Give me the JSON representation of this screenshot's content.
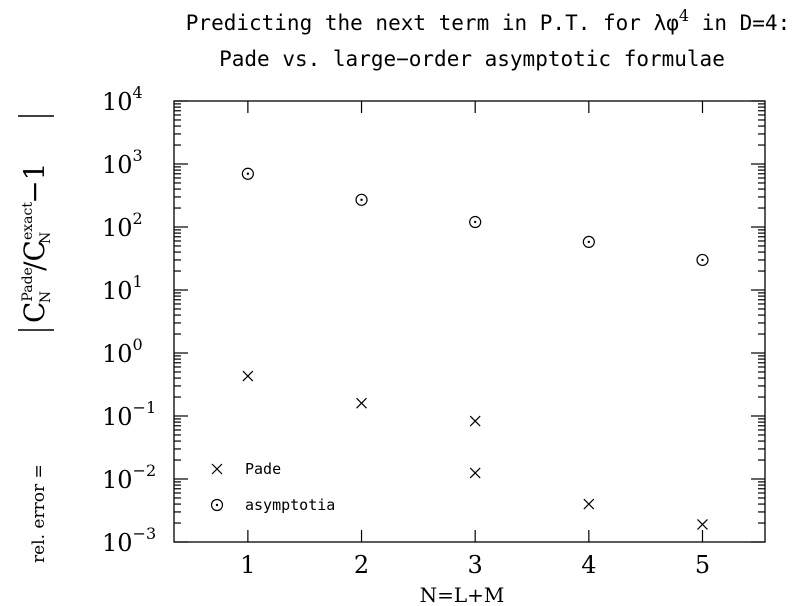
{
  "chart_data": {
    "type": "scatter",
    "title_line1": "Predicting the next term in P.T. for λφ",
    "title_power": "4",
    "title_line1_end": " in D=4:",
    "title_line2": "Pade vs. large−order asymptotic formulae",
    "xlabel": "N=L+M",
    "ylabel": {
      "prefix": "rel. error = ",
      "num_main": "C",
      "num_sup": "Pade",
      "num_sub": "N",
      "slash": "/",
      "den_main": "C",
      "den_sup": "exact",
      "den_sub": "N",
      "tail": "−1"
    },
    "x_ticks": [
      "1",
      "2",
      "3",
      "4",
      "5"
    ],
    "y_tick_base": "10",
    "y_tick_exponents": [
      "4",
      "3",
      "2",
      "1",
      "0",
      "−1",
      "−2",
      "−3"
    ],
    "xlim": [
      0.35,
      5.55
    ],
    "ylim": [
      0.001,
      10000
    ],
    "y_scale": "log",
    "grid": false,
    "legend_position": "bottom-left",
    "series": [
      {
        "name": "Pade",
        "marker": "cross",
        "x": [
          1,
          2,
          3,
          3,
          4,
          5
        ],
        "y": [
          0.43,
          0.16,
          0.083,
          0.0125,
          0.004,
          0.0019
        ]
      },
      {
        "name": "asymptotia",
        "marker": "circle-dot",
        "x": [
          1,
          2,
          3,
          4,
          5
        ],
        "y": [
          700,
          270,
          120,
          58,
          30
        ]
      }
    ]
  }
}
